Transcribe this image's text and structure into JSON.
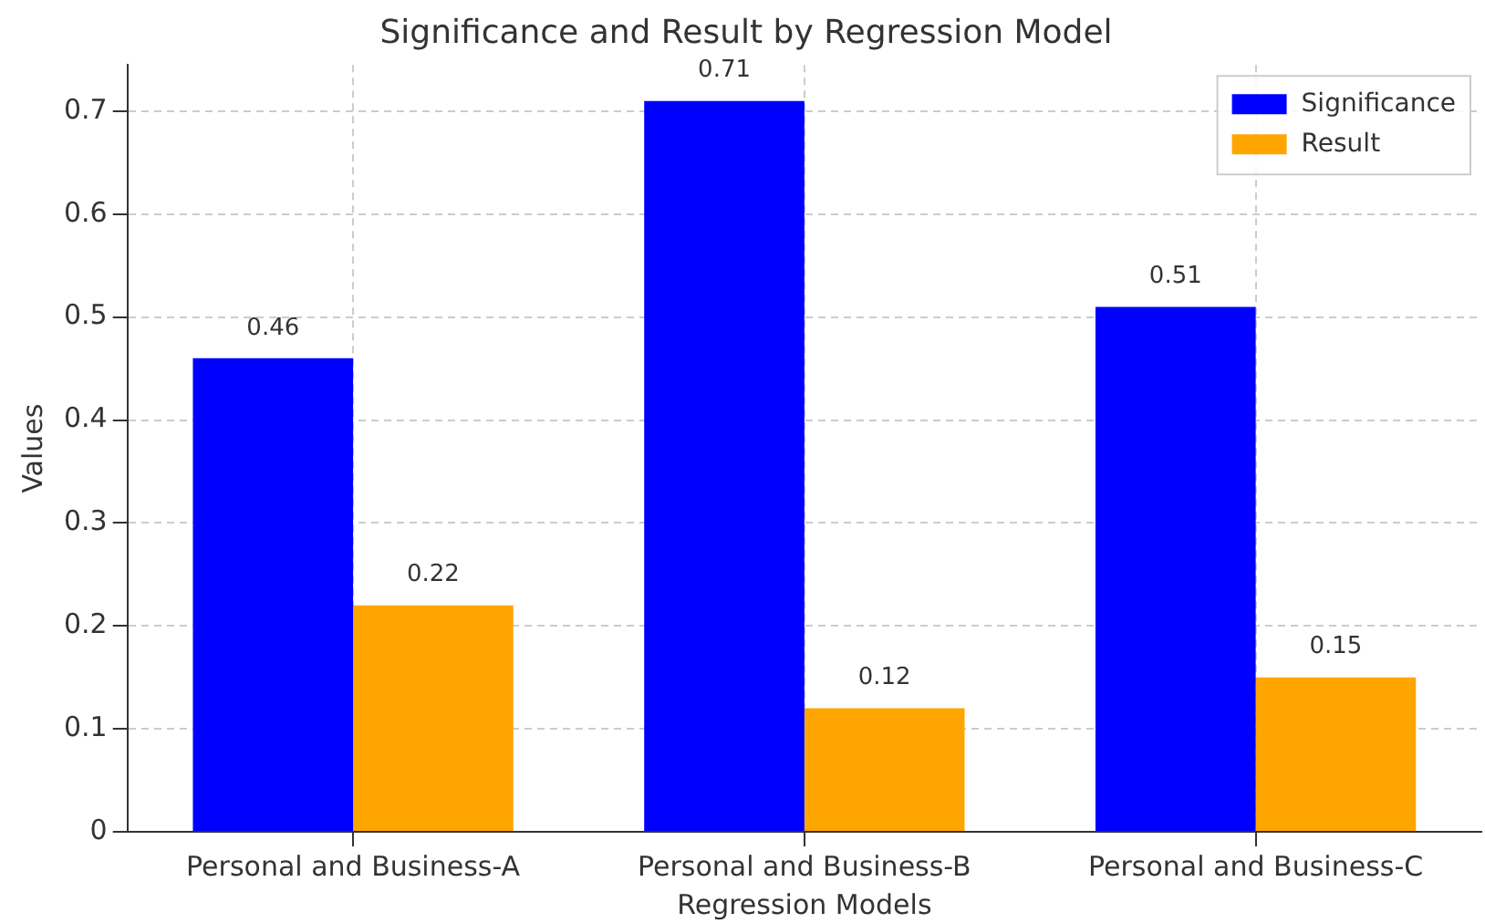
{
  "chart_data": {
    "type": "bar",
    "title": "Significance and Result by Regression Model",
    "xlabel": "Regression Models",
    "ylabel": "Values",
    "categories": [
      "Personal and Business-A",
      "Personal and Business-B",
      "Personal and Business-C"
    ],
    "series": [
      {
        "name": "Significance",
        "color": "#0000ff",
        "values": [
          0.46,
          0.71,
          0.51
        ]
      },
      {
        "name": "Result",
        "color": "#ffa500",
        "values": [
          0.22,
          0.12,
          0.15
        ]
      }
    ],
    "ylim": [
      0,
      0.745
    ],
    "yticks": [
      0,
      {
        "value": 0.1,
        "label": "0.1"
      },
      {
        "value": 0.2,
        "label": "0.2"
      },
      {
        "value": 0.3,
        "label": "0.3"
      },
      {
        "value": 0.4,
        "label": "0.4"
      },
      {
        "value": 0.5,
        "label": "0.5"
      },
      {
        "value": 0.6,
        "label": "0.6"
      },
      {
        "value": 0.7,
        "label": "0.7"
      }
    ],
    "grid": true,
    "legend": "top right",
    "data_labels": true
  }
}
